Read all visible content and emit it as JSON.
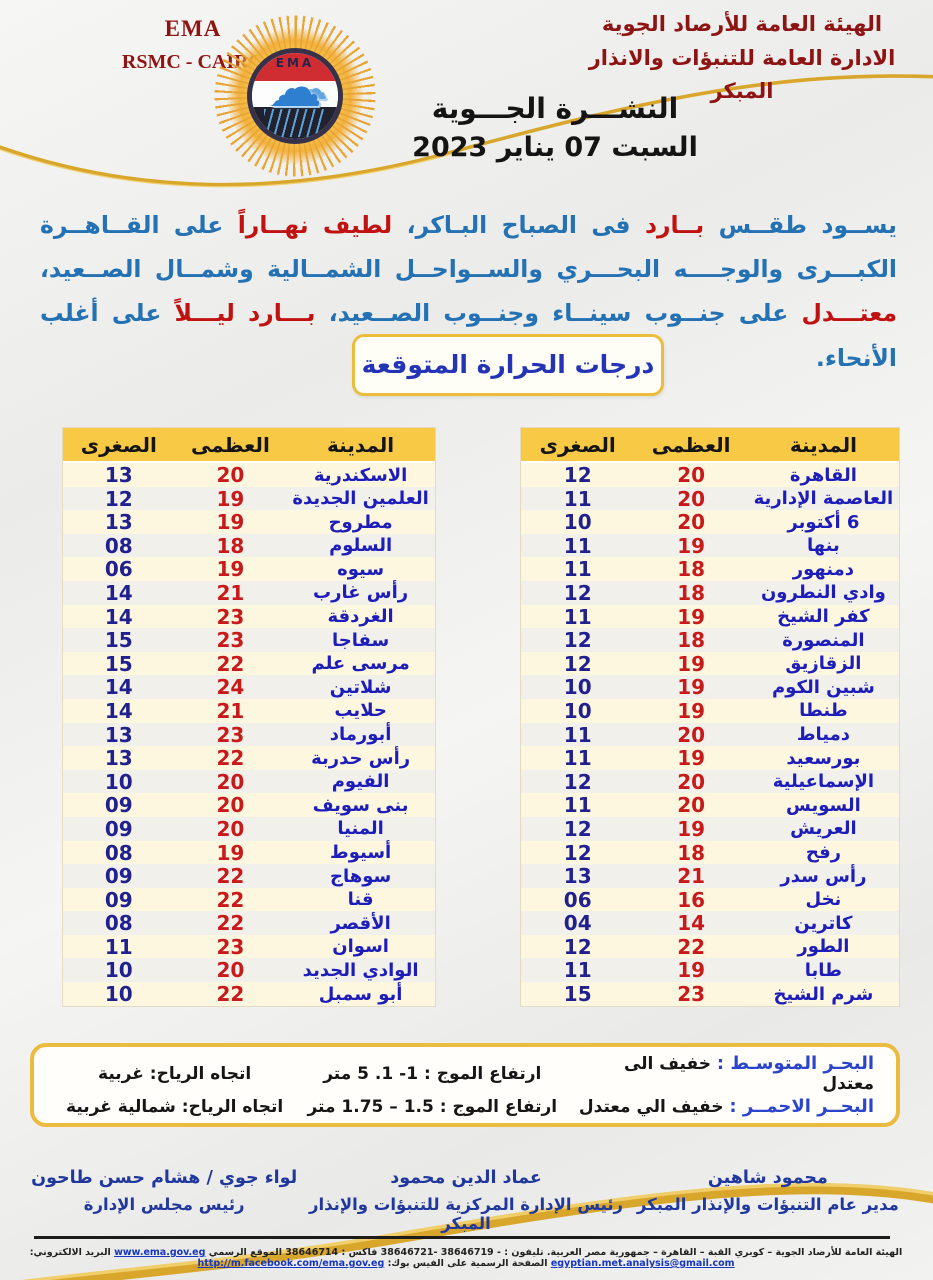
{
  "colors": {
    "dark_red": "#8e1414",
    "paragraph_blue": "#2471b4",
    "accent_red": "#c11212",
    "city_blue": "#1d1dba",
    "min_blue": "#20208e",
    "max_red": "#c81a1a",
    "gold": "#d9a62c",
    "header_gold": "#f8c945",
    "footer_blue": "#20389e"
  },
  "header": {
    "agency_en": "EMA",
    "center_en": "RSMC - CAIRO",
    "agency_ar": "الهيئة العامة للأرصاد الجوية",
    "department_ar": "الادارة العامة للتنبؤات والانذار المبكر",
    "logo_text": "EMA",
    "bulletin_title": "النشـــرة الجـــوية",
    "bulletin_date": "السبت 07 يناير 2023"
  },
  "forecast": {
    "segments": [
      {
        "text": "يســود طقــس ",
        "color": "blue"
      },
      {
        "text": "بــارد",
        "color": "red"
      },
      {
        "text": " فى الصباح البـاكر، ",
        "color": "blue"
      },
      {
        "text": "لطيف نهــاراً",
        "color": "red"
      },
      {
        "text": " على القــاهــرة الكبـــرى والوجــــه البحـــري والســواحــل الشمــالية وشمــال الصــعيد، ",
        "color": "blue"
      },
      {
        "text": "معتـــدل",
        "color": "red"
      },
      {
        "text": " على جنــوب سينــاء وجنــوب الصــعيد، ",
        "color": "blue"
      },
      {
        "text": "بـــارد ليـــلاً",
        "color": "red"
      },
      {
        "text": " على أغلب الأنحاء.",
        "color": "blue"
      }
    ]
  },
  "temperatures": {
    "section_title": "درجات الحرارة المتوقعة",
    "columns": {
      "city": "المدينة",
      "max": "العظمى",
      "min": "الصغرى"
    },
    "right_table": [
      {
        "city": "القاهرة",
        "max": "20",
        "min": "12"
      },
      {
        "city": "العاصمة الإدارية",
        "max": "20",
        "min": "11"
      },
      {
        "city": "6 أكتوبر",
        "max": "20",
        "min": "10"
      },
      {
        "city": "بنها",
        "max": "19",
        "min": "11"
      },
      {
        "city": "دمنهور",
        "max": "18",
        "min": "11"
      },
      {
        "city": "وادي النطرون",
        "max": "18",
        "min": "12"
      },
      {
        "city": "كفر الشيخ",
        "max": "19",
        "min": "11"
      },
      {
        "city": "المنصورة",
        "max": "18",
        "min": "12"
      },
      {
        "city": "الزقازيق",
        "max": "19",
        "min": "12"
      },
      {
        "city": "شبين الكوم",
        "max": "19",
        "min": "10"
      },
      {
        "city": "طنطا",
        "max": "19",
        "min": "10"
      },
      {
        "city": "دمياط",
        "max": "20",
        "min": "11"
      },
      {
        "city": "بورسعيد",
        "max": "19",
        "min": "11"
      },
      {
        "city": "الإسماعيلية",
        "max": "20",
        "min": "12"
      },
      {
        "city": "السويس",
        "max": "20",
        "min": "11"
      },
      {
        "city": "العريش",
        "max": "19",
        "min": "12"
      },
      {
        "city": "رفح",
        "max": "18",
        "min": "12"
      },
      {
        "city": "رأس سدر",
        "max": "21",
        "min": "13"
      },
      {
        "city": "نخل",
        "max": "16",
        "min": "06"
      },
      {
        "city": "كاترين",
        "max": "14",
        "min": "04"
      },
      {
        "city": "الطور",
        "max": "22",
        "min": "12"
      },
      {
        "city": "طابا",
        "max": "19",
        "min": "11"
      },
      {
        "city": "شرم الشيخ",
        "max": "23",
        "min": "15"
      }
    ],
    "left_table": [
      {
        "city": "الاسكندرية",
        "max": "20",
        "min": "13"
      },
      {
        "city": "العلمين الجديدة",
        "max": "19",
        "min": "12"
      },
      {
        "city": "مطروح",
        "max": "19",
        "min": "13"
      },
      {
        "city": "السلوم",
        "max": "18",
        "min": "08"
      },
      {
        "city": "سيوه",
        "max": "19",
        "min": "06"
      },
      {
        "city": "رأس غارب",
        "max": "21",
        "min": "14"
      },
      {
        "city": "الغردقة",
        "max": "23",
        "min": "14"
      },
      {
        "city": "سفاجا",
        "max": "23",
        "min": "15"
      },
      {
        "city": "مرسى علم",
        "max": "22",
        "min": "15"
      },
      {
        "city": "شلاتين",
        "max": "24",
        "min": "14"
      },
      {
        "city": "حلايب",
        "max": "21",
        "min": "14"
      },
      {
        "city": "أبورماد",
        "max": "23",
        "min": "13"
      },
      {
        "city": "رأس حدربة",
        "max": "22",
        "min": "13"
      },
      {
        "city": "الفيوم",
        "max": "20",
        "min": "10"
      },
      {
        "city": "بنى سويف",
        "max": "20",
        "min": "09"
      },
      {
        "city": "المنيا",
        "max": "20",
        "min": "09"
      },
      {
        "city": "أسيوط",
        "max": "19",
        "min": "08"
      },
      {
        "city": "سوهاج",
        "max": "22",
        "min": "09"
      },
      {
        "city": "قنا",
        "max": "22",
        "min": "09"
      },
      {
        "city": "الأقصر",
        "max": "22",
        "min": "08"
      },
      {
        "city": "اسوان",
        "max": "23",
        "min": "11"
      },
      {
        "city": "الوادي الجديد",
        "max": "20",
        "min": "10"
      },
      {
        "city": "أبو سمبل",
        "max": "22",
        "min": "10"
      }
    ]
  },
  "sea_conditions": {
    "rows": [
      {
        "label": "البحـر المتوسـط :",
        "status": "خفيف الى معتدل",
        "wave": "ارتفاع الموج :  1- 1. 5  متر",
        "wind": "اتجاه الرياح: غربية"
      },
      {
        "label": "البحــر الاحمــر :",
        "status": "خفيف الي معتدل",
        "wave": "ارتفاع الموج : 1.5 – 1.75 متر",
        "wind": "اتجاه الرياح: شمالية غربية"
      }
    ]
  },
  "signatures": [
    {
      "name": "محمود شاهين",
      "title": "مدير عام التنبؤات والإنذار المبكر"
    },
    {
      "name": "عماد الدين محمود",
      "title": "رئيس الإدارة المركزية للتنبؤات والإنذار المبكر"
    },
    {
      "name": "لواء جوي / هشام حسن طاحون",
      "title": "رئيس مجلس الإدارة"
    }
  ],
  "footer": {
    "contact_segments": [
      {
        "text": "الهيئة العامة للأرصاد الجوية – كوبري القبة – القاهرة – جمهورية مصر العربية. تليفون : - 38646719 -38646721 فاكس : 38646714 الموقع الرسمي ",
        "type": "text"
      },
      {
        "text": "www.ema.gov.eg",
        "type": "link"
      },
      {
        "text": " البريد الالكتروني: ",
        "type": "text"
      },
      {
        "text": "egyptian.met.analysis@gmail.com",
        "type": "link"
      },
      {
        "text": " الصفحة الرسمية على الفيس بوك: ",
        "type": "text"
      },
      {
        "text": "http://m.facebook.com/ema.gov.eg",
        "type": "link"
      }
    ]
  }
}
